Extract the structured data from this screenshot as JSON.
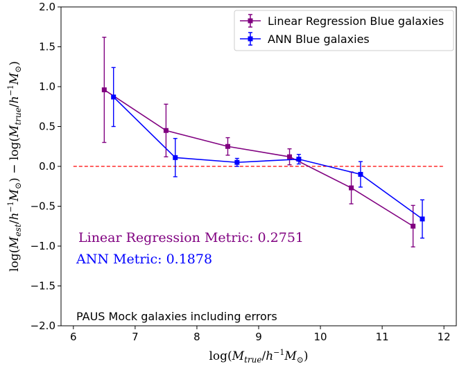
{
  "chart_data": {
    "type": "line",
    "xlabel": "log(M_true/h⁻¹M⊙)",
    "ylabel": "log(M_est/h⁻¹M⊙) − log(M_true/h⁻¹M⊙)",
    "xlim": [
      5.8,
      12.2
    ],
    "ylim": [
      -2.0,
      2.0
    ],
    "xticks": [
      6,
      7,
      8,
      9,
      10,
      11,
      12
    ],
    "yticks": [
      -2.0,
      -1.5,
      -1.0,
      -0.5,
      0.0,
      0.5,
      1.0,
      1.5,
      2.0
    ],
    "grid": false,
    "legend_position": "top-right",
    "reference_line": {
      "y": 0.0,
      "color": "#ff0000",
      "style": "dashed"
    },
    "series": [
      {
        "name": "Linear Regression Blue galaxies",
        "color": "#800080",
        "x": [
          6.5,
          7.5,
          8.5,
          9.5,
          10.5,
          11.5
        ],
        "y": [
          0.96,
          0.45,
          0.25,
          0.12,
          -0.27,
          -0.75
        ],
        "yerr": [
          0.66,
          0.33,
          0.11,
          0.1,
          0.2,
          0.26
        ]
      },
      {
        "name": "ANN Blue galaxies",
        "color": "#0000ff",
        "x": [
          6.65,
          7.65,
          8.65,
          9.65,
          10.65,
          11.65
        ],
        "y": [
          0.87,
          0.11,
          0.05,
          0.09,
          -0.1,
          -0.66
        ],
        "yerr": [
          0.37,
          0.24,
          0.05,
          0.06,
          0.16,
          0.24
        ]
      }
    ],
    "annotations": {
      "linreg_metric": "Linear Regression Metric: 0.2751",
      "ann_metric": "ANN Metric: 0.1878",
      "footer": "PAUS Mock galaxies including errors"
    }
  }
}
